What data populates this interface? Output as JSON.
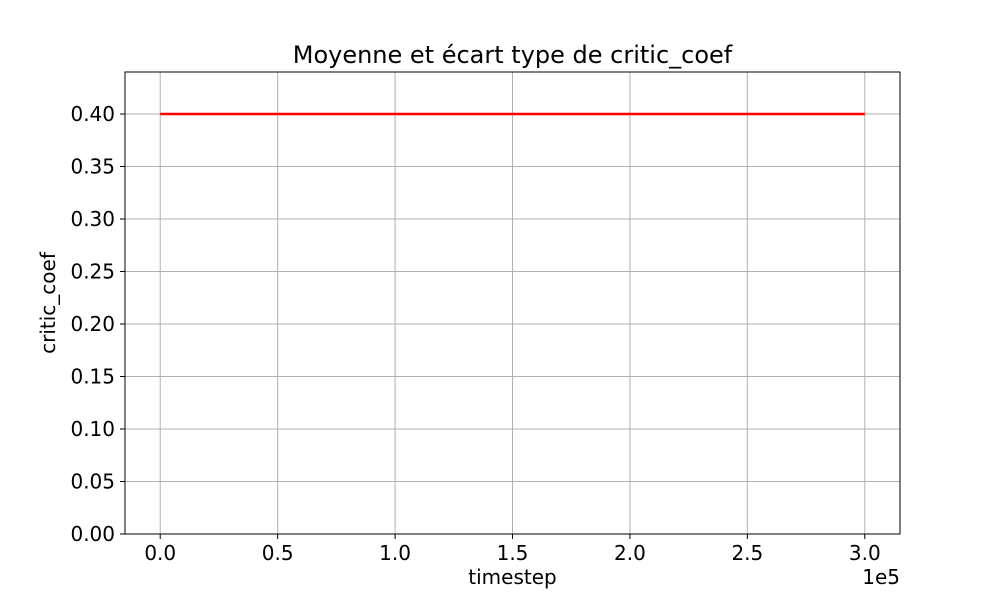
{
  "chart_data": {
    "type": "line",
    "title": "Moyenne et écart type de critic_coef",
    "xlabel": "timestep",
    "ylabel": "critic_coef",
    "x_offset_label": "1e5",
    "xlim": [
      -0.15,
      3.15
    ],
    "ylim": [
      0.0,
      0.44
    ],
    "x_ticks": [
      0.0,
      0.5,
      1.0,
      1.5,
      2.0,
      2.5,
      3.0
    ],
    "x_tick_labels": [
      "0.0",
      "0.5",
      "1.0",
      "1.5",
      "2.0",
      "2.5",
      "3.0"
    ],
    "y_ticks": [
      0.0,
      0.05,
      0.1,
      0.15,
      0.2,
      0.25,
      0.3,
      0.35,
      0.4
    ],
    "y_tick_labels": [
      "0.00",
      "0.05",
      "0.10",
      "0.15",
      "0.20",
      "0.25",
      "0.30",
      "0.35",
      "0.40"
    ],
    "grid": true,
    "series": [
      {
        "color": "#ff0000",
        "x": [
          0.0,
          3.0
        ],
        "y": [
          0.4,
          0.4
        ]
      }
    ]
  }
}
